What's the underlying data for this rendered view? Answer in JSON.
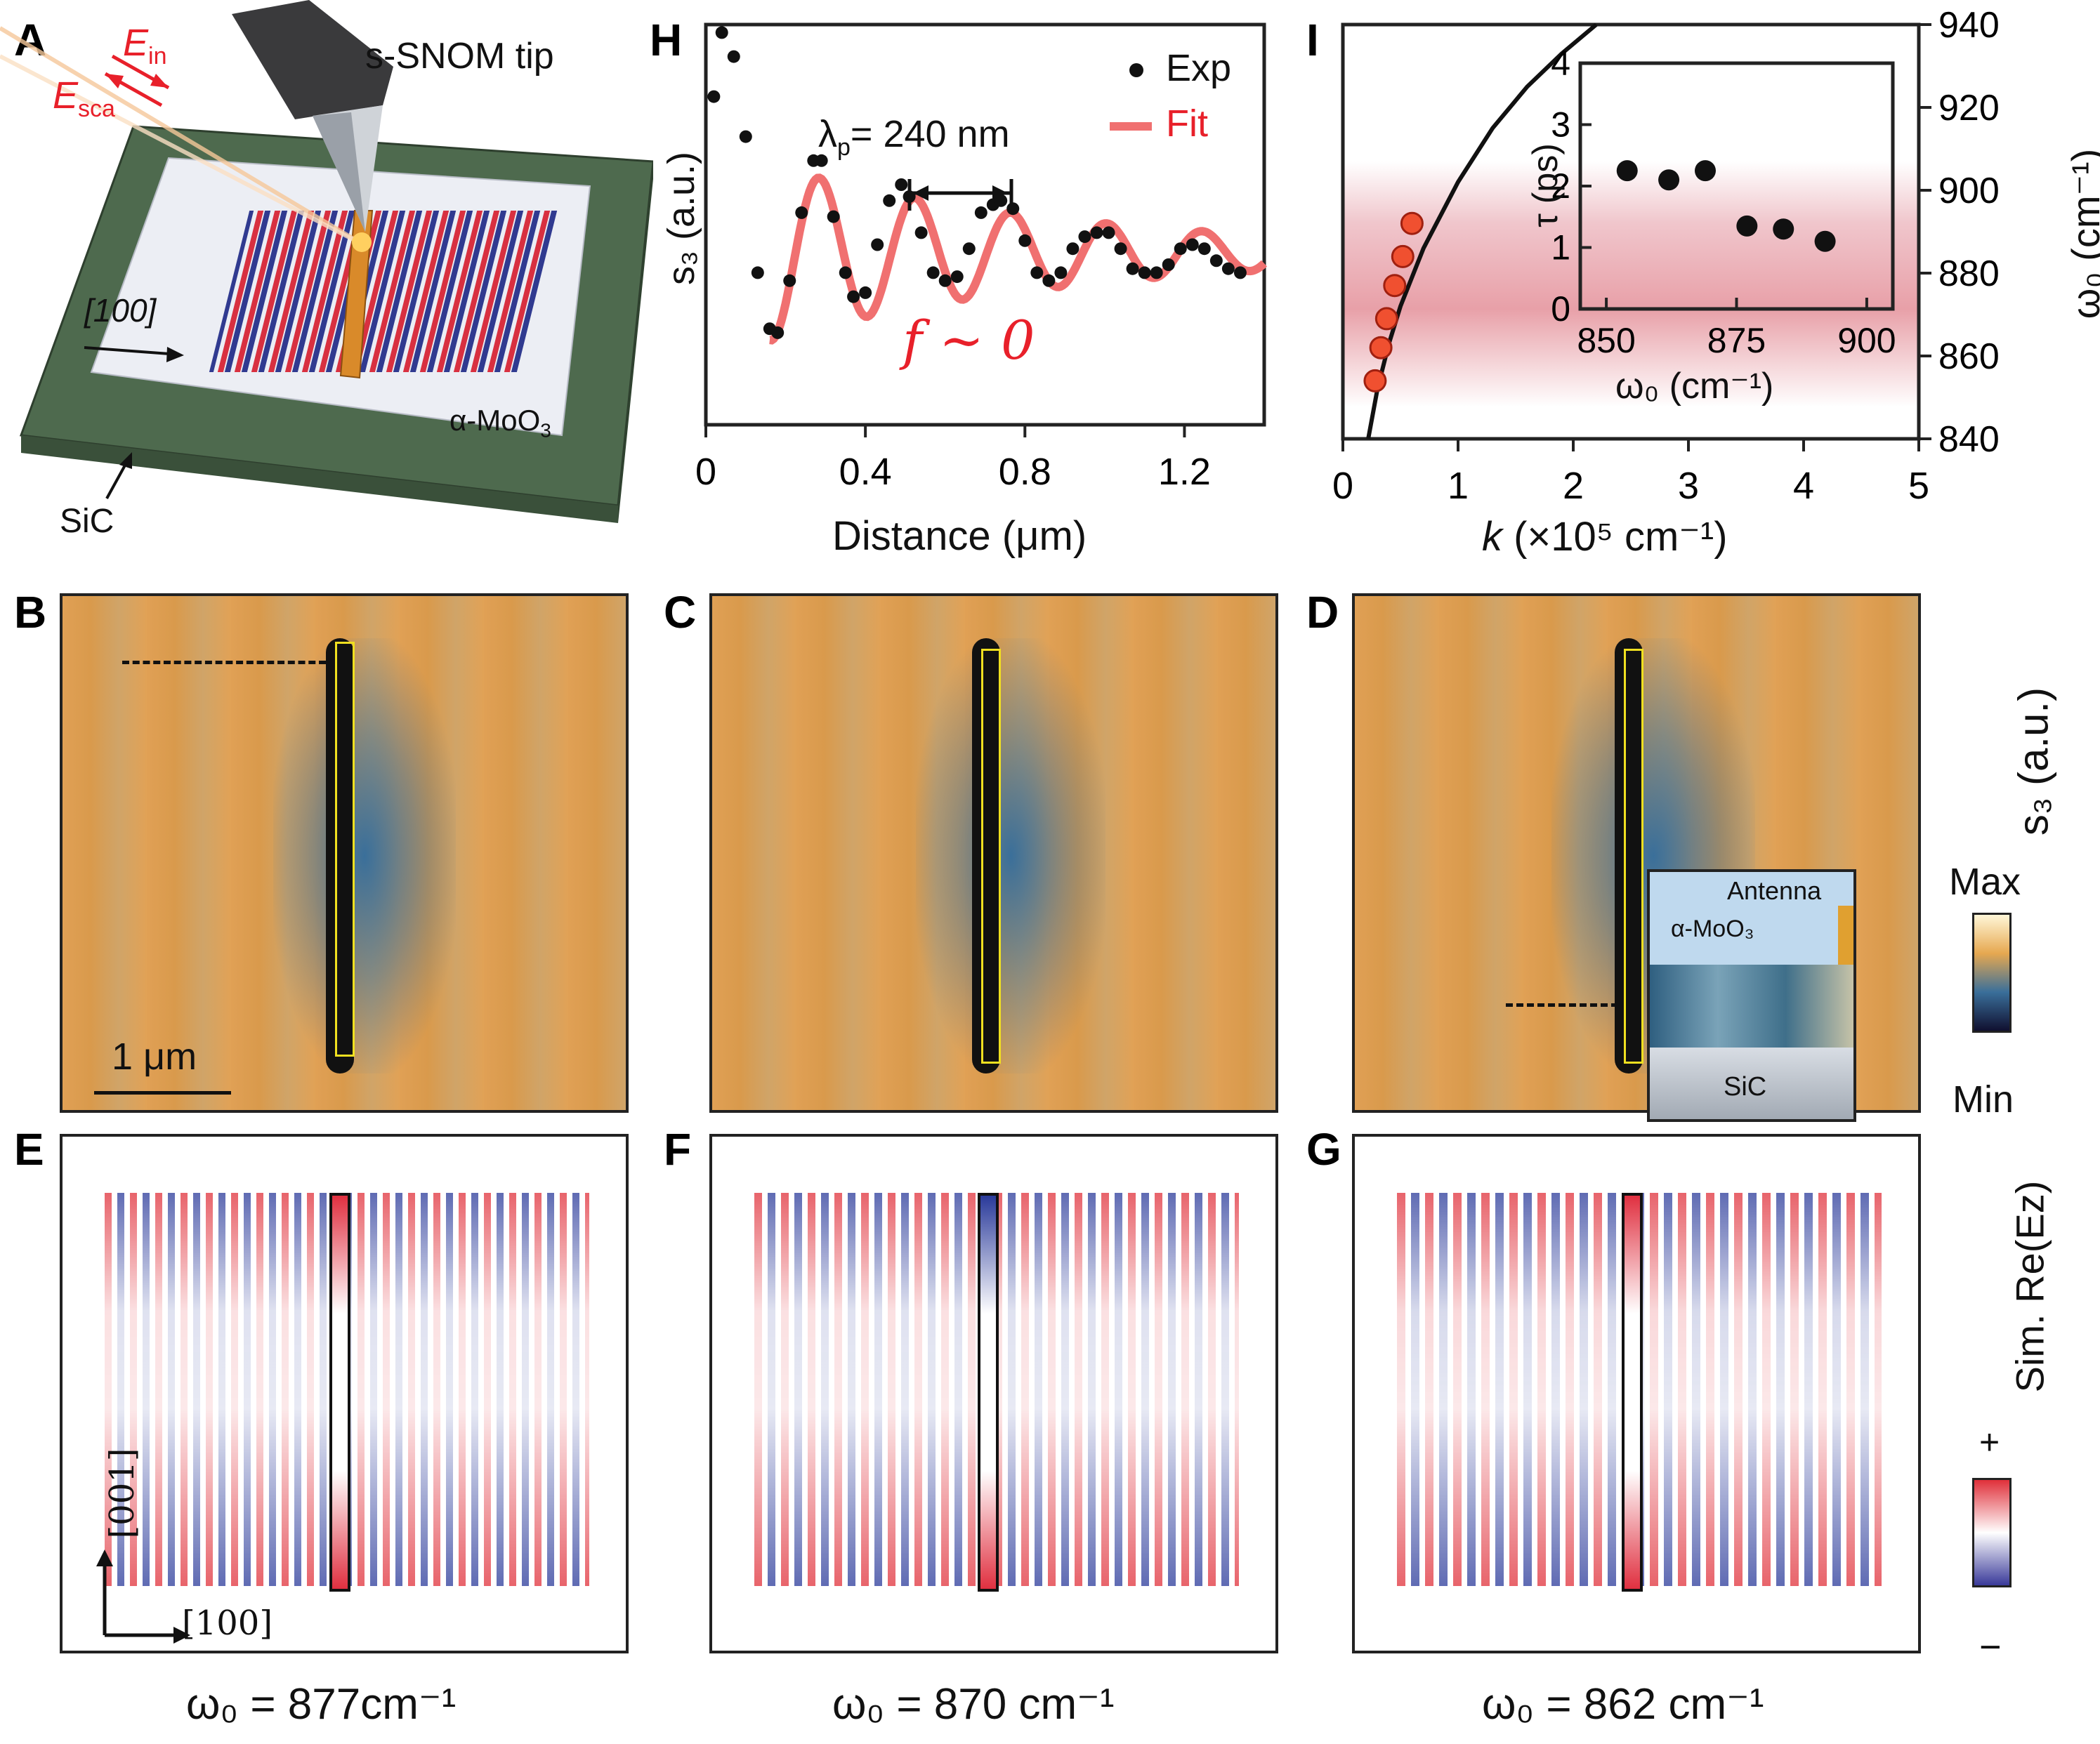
{
  "panel_labels": [
    "A",
    "B",
    "C",
    "D",
    "E",
    "F",
    "G",
    "H",
    "I"
  ],
  "panelA": {
    "e_in": "E",
    "e_in_sub": "in",
    "e_sca": "E",
    "e_sca_sub": "sca",
    "tip": "s-SNOM tip",
    "dir": "[100]",
    "flake": "α-MoO",
    "flake_sub": "3",
    "substrate": "SiC"
  },
  "panelH": {
    "ylabel": "s₃ (a.u.)",
    "xlabel": "Distance (μm)",
    "legend_exp": "Exp",
    "legend_fit": "Fit",
    "wavelength_label": "λ",
    "wavelength_sub": "p",
    "wavelength_value": "= 240 nm",
    "f_label": "f ~ 0",
    "xticks": [
      "0",
      "0.4",
      "0.8",
      "1.2"
    ]
  },
  "panelI": {
    "xlabel_k": "k",
    "xlabel_rest": " (×10⁵ cm⁻¹)",
    "ylabel_right": "ω₀ (cm⁻¹)",
    "xticks": [
      "0",
      "1",
      "2",
      "3",
      "4",
      "5"
    ],
    "yticks": [
      "840",
      "860",
      "880",
      "900",
      "920",
      "940"
    ],
    "inset_ylabel": "τ (ps)",
    "inset_xlabel": "ω₀ (cm⁻¹)",
    "inset_xticks": [
      "850",
      "875",
      "900"
    ],
    "inset_yticks": [
      "0",
      "1",
      "2",
      "3",
      "4"
    ]
  },
  "maps": {
    "scale_bar": "1 μm",
    "colorbar_title": "s₃ (a.u.)",
    "colorbar_max": "Max",
    "colorbar_min": "Min",
    "inset_antenna": "Antenna",
    "inset_flake": "α-MoO₃",
    "inset_sub": "SiC"
  },
  "sim": {
    "axis_001": "[001]",
    "axis_100": "[100]",
    "colorbar_title": "Sim. Re(Ez)",
    "plus": "+",
    "minus": "−",
    "captions": [
      "ω₀ = 877cm⁻¹",
      "ω₀ = 870 cm⁻¹",
      "ω₀ = 862 cm⁻¹"
    ]
  },
  "colors": {
    "afm_orange": "#e0a055",
    "afm_blue": "#3a6f9a",
    "sim_red": "#e0303a",
    "sim_blue": "#2a3a9a",
    "fit_red": "#f07070",
    "accent_red": "#e8202a",
    "highlight_band": "#e8a0a8",
    "marker_orange": "#f05030"
  },
  "chart_data": [
    {
      "type": "scatter",
      "panel": "H",
      "xlabel": "Distance (μm)",
      "ylabel": "s₃ (a.u.)",
      "xlim": [
        0,
        1.4
      ],
      "series": [
        {
          "name": "Exp",
          "x": [
            0.02,
            0.04,
            0.07,
            0.1,
            0.13,
            0.16,
            0.18,
            0.21,
            0.24,
            0.27,
            0.29,
            0.32,
            0.35,
            0.37,
            0.4,
            0.43,
            0.46,
            0.49,
            0.51,
            0.54,
            0.57,
            0.6,
            0.63,
            0.66,
            0.69,
            0.72,
            0.74,
            0.77,
            0.8,
            0.83,
            0.86,
            0.89,
            0.92,
            0.95,
            0.98,
            1.01,
            1.04,
            1.07,
            1.1,
            1.13,
            1.16,
            1.19,
            1.22,
            1.25,
            1.28,
            1.31,
            1.34
          ],
          "y": [
            0.82,
            0.98,
            0.92,
            0.72,
            0.38,
            0.24,
            0.23,
            0.36,
            0.53,
            0.66,
            0.66,
            0.52,
            0.38,
            0.32,
            0.33,
            0.45,
            0.56,
            0.6,
            0.57,
            0.48,
            0.38,
            0.36,
            0.37,
            0.44,
            0.53,
            0.55,
            0.56,
            0.54,
            0.46,
            0.38,
            0.36,
            0.38,
            0.44,
            0.47,
            0.48,
            0.48,
            0.44,
            0.39,
            0.38,
            0.38,
            0.4,
            0.44,
            0.45,
            0.44,
            0.41,
            0.39,
            0.38
          ]
        },
        {
          "name": "Fit",
          "type": "line"
        }
      ]
    },
    {
      "type": "line",
      "panel": "I",
      "xlabel": "k (×10⁵ cm⁻¹)",
      "ylabel": "ω₀ (cm⁻¹)",
      "xlim": [
        0,
        5
      ],
      "ylim": [
        840,
        940
      ],
      "series": [
        {
          "name": "dispersion",
          "x": [
            0.22,
            0.3,
            0.4,
            0.5,
            0.7,
            1.0,
            1.3,
            1.6,
            1.9,
            2.2
          ],
          "y": [
            840,
            852,
            863,
            872,
            886,
            902,
            915,
            925,
            933,
            940
          ]
        },
        {
          "name": "measured",
          "type": "scatter",
          "x": [
            0.28,
            0.33,
            0.38,
            0.45,
            0.52,
            0.6
          ],
          "y": [
            854,
            862,
            869,
            877,
            884,
            892
          ]
        }
      ]
    },
    {
      "type": "scatter",
      "panel": "I-inset",
      "xlabel": "ω₀ (cm⁻¹)",
      "ylabel": "τ (ps)",
      "xlim": [
        845,
        905
      ],
      "ylim": [
        0,
        4
      ],
      "series": [
        {
          "name": "τ",
          "x": [
            854,
            862,
            869,
            877,
            884,
            892
          ],
          "y": [
            2.25,
            2.1,
            2.25,
            1.35,
            1.3,
            1.1
          ]
        }
      ]
    }
  ]
}
